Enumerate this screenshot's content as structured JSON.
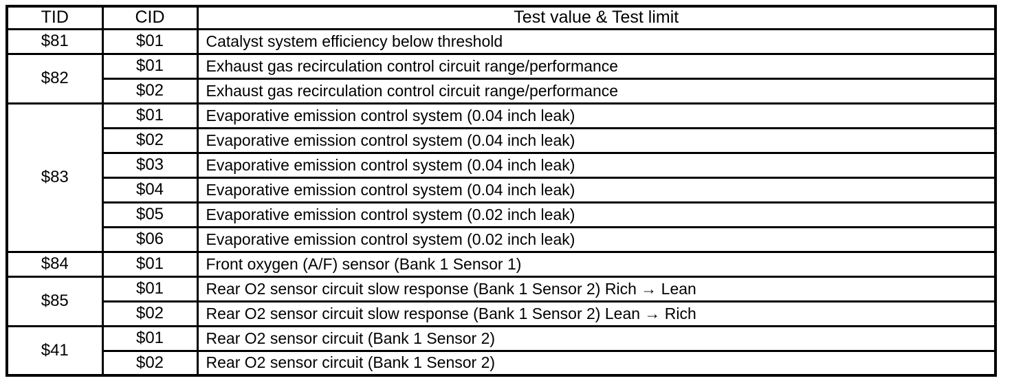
{
  "table": {
    "columns": [
      "TID",
      "CID",
      "Test value & Test limit"
    ],
    "groups": [
      {
        "tid": "$81",
        "rows": [
          {
            "cid": "$01",
            "desc": "Catalyst system efficiency below threshold"
          }
        ]
      },
      {
        "tid": "$82",
        "rows": [
          {
            "cid": "$01",
            "desc": "Exhaust gas recirculation control circuit range/performance"
          },
          {
            "cid": "$02",
            "desc": "Exhaust gas recirculation control circuit range/performance"
          }
        ]
      },
      {
        "tid": "$83",
        "rows": [
          {
            "cid": "$01",
            "desc": "Evaporative emission control system (0.04 inch leak)"
          },
          {
            "cid": "$02",
            "desc": "Evaporative emission control system (0.04 inch leak)"
          },
          {
            "cid": "$03",
            "desc": "Evaporative emission control system (0.04 inch leak)"
          },
          {
            "cid": "$04",
            "desc": "Evaporative emission control system (0.04 inch leak)"
          },
          {
            "cid": "$05",
            "desc": "Evaporative emission control system (0.02 inch leak)"
          },
          {
            "cid": "$06",
            "desc": "Evaporative emission control system (0.02 inch leak)"
          }
        ]
      },
      {
        "tid": "$84",
        "rows": [
          {
            "cid": "$01",
            "desc": "Front oxygen (A/F) sensor (Bank 1 Sensor 1)"
          }
        ]
      },
      {
        "tid": "$85",
        "rows": [
          {
            "cid": "$01",
            "desc": "Rear O2 sensor circuit slow response (Bank 1 Sensor 2) Rich → Lean"
          },
          {
            "cid": "$02",
            "desc": "Rear O2 sensor circuit slow response (Bank 1 Sensor 2) Lean → Rich"
          }
        ]
      },
      {
        "tid": "$41",
        "rows": [
          {
            "cid": "$01",
            "desc": "Rear O2 sensor circuit (Bank 1 Sensor 2)"
          },
          {
            "cid": "$02",
            "desc": "Rear O2 sensor circuit (Bank 1 Sensor 2)"
          }
        ]
      }
    ]
  }
}
